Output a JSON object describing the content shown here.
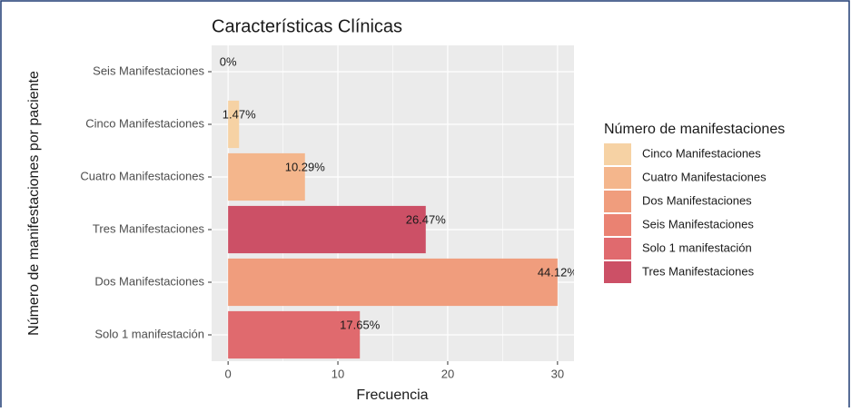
{
  "chart_data": {
    "type": "bar",
    "horizontal": true,
    "title": "Características Clínicas",
    "x_label": "Frecuencia",
    "y_label": "Número de manifestaciones por paciente",
    "categories": [
      "Seis Manifestaciones",
      "Cinco Manifestaciones",
      "Cuatro Manifestaciones",
      "Tres Manifestaciones",
      "Dos Manifestaciones",
      "Solo 1 manifestación"
    ],
    "values": [
      0,
      1,
      7,
      18,
      30,
      12
    ],
    "bar_labels": [
      "0%",
      "1.47%",
      "10.29%",
      "26.47%",
      "44.12%",
      "17.65%"
    ],
    "xlim": [
      -1.5,
      31.5
    ],
    "xticks": [
      0,
      10,
      20,
      30
    ],
    "minor_xticks": [
      5,
      15,
      25
    ],
    "grid": true,
    "legend": {
      "title": "Número de manifestaciones",
      "position": "right",
      "entries": [
        {
          "name": "Cinco Manifestaciones",
          "color": "#f6d2a4"
        },
        {
          "name": "Cuatro Manifestaciones",
          "color": "#f4b68c"
        },
        {
          "name": "Dos Manifestaciones",
          "color": "#f09d7d"
        },
        {
          "name": "Seis Manifestaciones",
          "color": "#ea8272"
        },
        {
          "name": "Solo 1 manifestación",
          "color": "#e06a6e"
        },
        {
          "name": "Tres Manifestaciones",
          "color": "#cc5066"
        }
      ]
    }
  }
}
